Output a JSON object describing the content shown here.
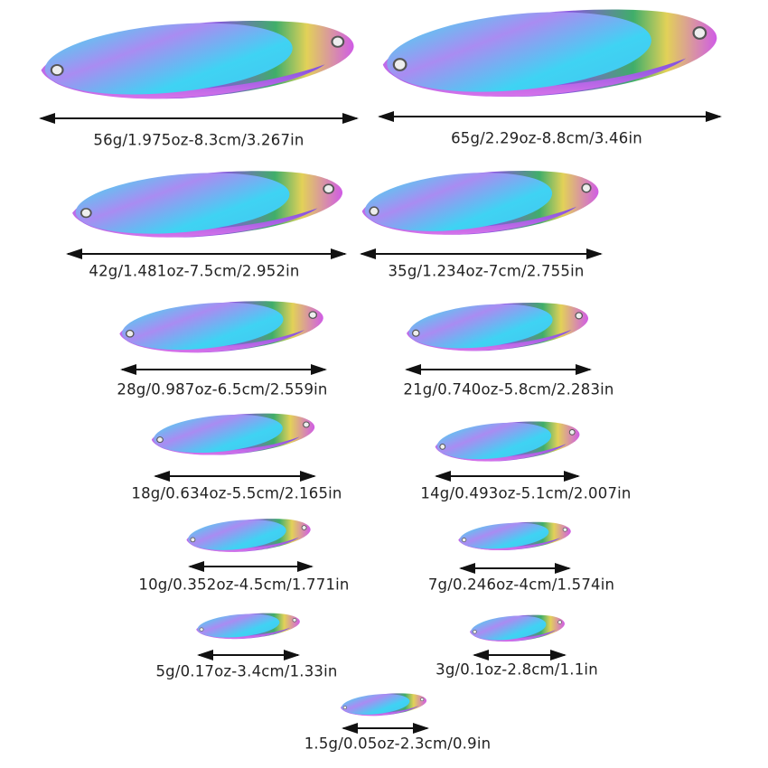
{
  "colors": {
    "blue": "#3fd6f2",
    "purple": "#b37ef0",
    "green": "#4dbb6b",
    "pink": "#d05ce6"
  },
  "items": [
    {
      "label": "56g/1.975oz-8.3cm/3.267in"
    },
    {
      "label": "65g/2.29oz-8.8cm/3.46in"
    },
    {
      "label": "42g/1.481oz-7.5cm/2.952in"
    },
    {
      "label": "35g/1.234oz-7cm/2.755in"
    },
    {
      "label": "28g/0.987oz-6.5cm/2.559in"
    },
    {
      "label": "21g/0.740oz-5.8cm/2.283in"
    },
    {
      "label": "18g/0.634oz-5.5cm/2.165in"
    },
    {
      "label": "14g/0.493oz-5.1cm/2.007in"
    },
    {
      "label": "10g/0.352oz-4.5cm/1.771in"
    },
    {
      "label": "7g/0.246oz-4cm/1.574in"
    },
    {
      "label": "5g/0.17oz-3.4cm/1.33in"
    },
    {
      "label": "3g/0.1oz-2.8cm/1.1in"
    },
    {
      "label": "1.5g/0.05oz-2.3cm/0.9in"
    }
  ]
}
